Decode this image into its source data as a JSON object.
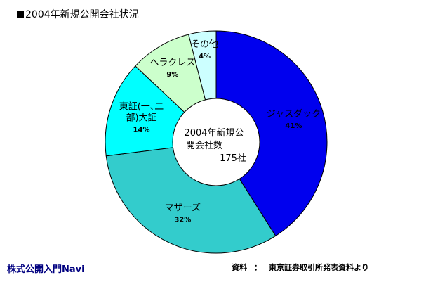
{
  "chart_data": {
    "type": "pie",
    "title": "2004年新規公開会社状況",
    "slices": [
      {
        "label": "ジャスダック",
        "percent_label": "41%",
        "value": 41,
        "color": "#0000ee"
      },
      {
        "label": "マザーズ",
        "percent_label": "32%",
        "value": 32,
        "color": "#33cccc"
      },
      {
        "label": "東証(一、二部)大証",
        "label_lines": [
          "東証(一､二",
          "部)大証"
        ],
        "percent_label": "14%",
        "value": 14,
        "color": "#00ffff"
      },
      {
        "label": "ヘラクレス",
        "percent_label": "9%",
        "value": 9,
        "color": "#ccffcc"
      },
      {
        "label": "その他",
        "percent_label": "4%",
        "value": 4,
        "color": "#ccffff"
      }
    ],
    "center_label": [
      "2004年新規公",
      "開会社数",
      "175社"
    ]
  },
  "footer": {
    "brand": "株式公開入門Navi",
    "source_label": "資料",
    "source_sep": "：",
    "source_text": "東京証券取引所発表資料より"
  }
}
